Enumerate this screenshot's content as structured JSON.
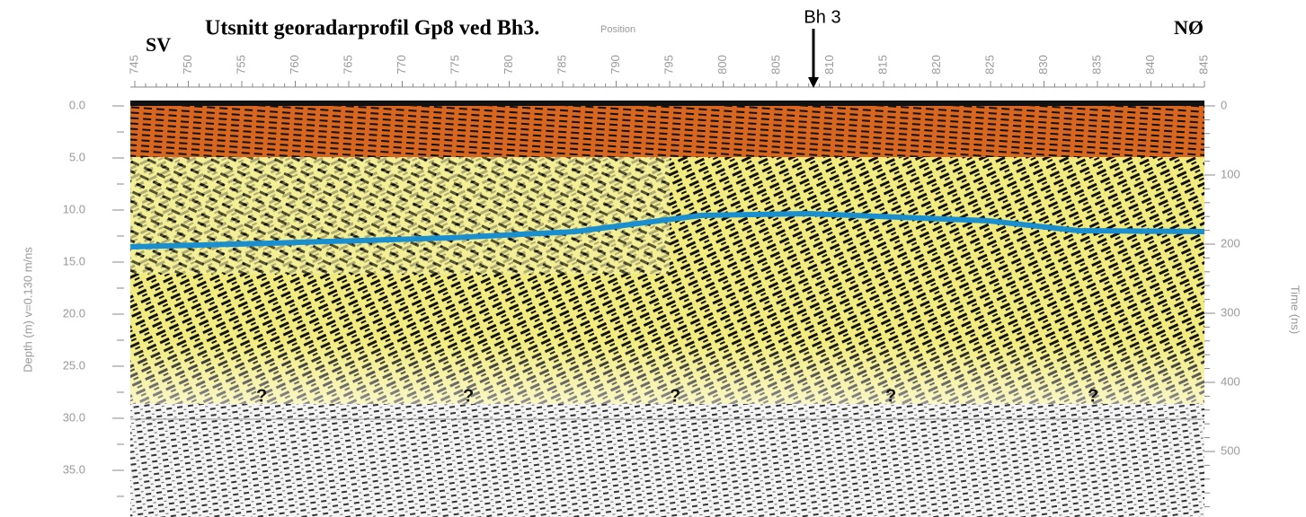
{
  "header": {
    "title": "Utsnitt georadarprofil Gp8 ved Bh3.",
    "position_label": "Position",
    "left_end": "SV",
    "right_end": "NØ",
    "marker": "Bh 3"
  },
  "top_axis": {
    "labels": [
      "745",
      "750",
      "755",
      "760",
      "765",
      "770",
      "775",
      "780",
      "785",
      "790",
      "795",
      "800",
      "805",
      "810",
      "815",
      "820",
      "825",
      "830",
      "835",
      "840",
      "845"
    ]
  },
  "left_axis": {
    "title": "Depth (m) v=0.130 m/ns",
    "labels": [
      "0.0",
      "5.0",
      "10.0",
      "15.0",
      "20.0",
      "25.0",
      "30.0",
      "35.0"
    ]
  },
  "right_axis": {
    "title": "Time (ns)",
    "labels": [
      "0",
      "100",
      "200",
      "300",
      "400",
      "500"
    ]
  },
  "annotations": [
    "?",
    "?",
    "?",
    "?",
    "?"
  ]
}
